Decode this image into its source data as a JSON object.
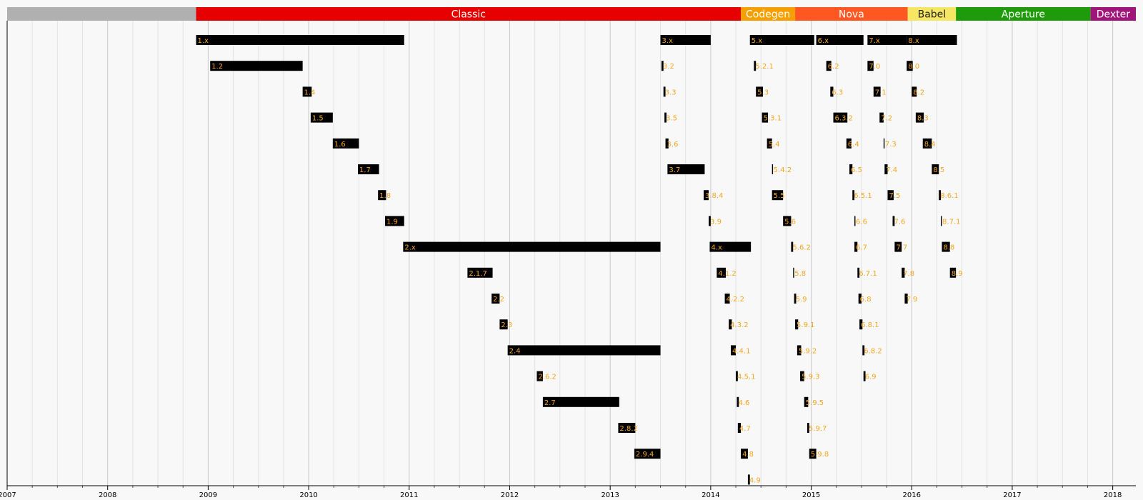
{
  "chart_data": {
    "type": "timeline",
    "xlim": [
      2007,
      2018.23
    ],
    "xticks": [
      2007,
      2008,
      2009,
      2010,
      2011,
      2012,
      2013,
      2014,
      2015,
      2016,
      2017,
      2018
    ],
    "xminor_per_tick": 4,
    "grid": true,
    "bar_color": "#000000",
    "label_color": "#f5a623",
    "eras": [
      {
        "name": null,
        "color": "#b0b0b0",
        "label_color": "#ffffff",
        "start": 2007.0,
        "end": 2008.88
      },
      {
        "name": "Classic",
        "color": "#e60000",
        "label_color": "#ffffff",
        "start": 2008.88,
        "end": 2014.3
      },
      {
        "name": "Codegen",
        "color": "#f5a000",
        "label_color": "#ffffff",
        "start": 2014.3,
        "end": 2014.84
      },
      {
        "name": "Nova",
        "color": "#ff5722",
        "label_color": "#ffffff",
        "start": 2014.84,
        "end": 2015.96
      },
      {
        "name": "Babel",
        "color": "#f5e663",
        "label_color": "#222222",
        "start": 2015.96,
        "end": 2016.44
      },
      {
        "name": "Aperture",
        "color": "#1e9a0a",
        "label_color": "#ffffff",
        "start": 2016.44,
        "end": 2017.78
      },
      {
        "name": "Dexter",
        "color": "#a0157a",
        "label_color": "#ffffff",
        "start": 2017.78,
        "end": 2018.23
      }
    ],
    "groups": [
      {
        "labels": [
          "1.x",
          "1.2",
          "1.4",
          "1.5",
          "1.6",
          "1.7",
          "1.8",
          "1.9",
          "2.x",
          "2.1.7",
          "2.2",
          "2.3",
          "2.4",
          "2.6.2",
          "2.7",
          "2.8.2",
          "2.9.4"
        ],
        "start": [
          2008.88,
          2009.02,
          2009.94,
          2010.02,
          2010.24,
          2010.49,
          2010.69,
          2010.76,
          2010.94,
          2011.58,
          2011.82,
          2011.9,
          2011.98,
          2012.27,
          2012.33,
          2013.08,
          2013.24
        ],
        "end": [
          2010.95,
          2009.94,
          2010.03,
          2010.24,
          2010.5,
          2010.7,
          2010.77,
          2010.95,
          2013.5,
          2011.83,
          2011.9,
          2011.98,
          2013.5,
          2012.33,
          2013.09,
          2013.25,
          2013.5
        ]
      },
      {
        "labels": [
          "3.x",
          "3.2",
          "3.3",
          "3.5",
          "3.6",
          "3.7",
          "3.8.4",
          "3.9",
          "4.x",
          "4.1.2",
          "4.2.2",
          "4.3.2",
          "4.4.1",
          "4.5.1",
          "4.6",
          "4.7",
          "4.8",
          "4.9"
        ],
        "start": [
          2013.5,
          2013.51,
          2013.53,
          2013.54,
          2013.55,
          2013.57,
          2013.93,
          2013.98,
          2013.99,
          2014.06,
          2014.14,
          2014.18,
          2014.2,
          2014.25,
          2014.26,
          2014.27,
          2014.3,
          2014.37
        ],
        "end": [
          2014.0,
          2013.53,
          2013.55,
          2013.56,
          2013.58,
          2013.94,
          2013.98,
          2014.0,
          2014.4,
          2014.15,
          2014.19,
          2014.21,
          2014.25,
          2014.27,
          2014.28,
          2014.3,
          2014.37,
          2014.39
        ]
      },
      {
        "labels": [
          "5.x",
          "5.2.1",
          "5.3",
          "5.3.1",
          "5.4",
          "5.4.2",
          "5.5",
          "5.6",
          "5.6.2",
          "5.8",
          "5.9",
          "5.9.1",
          "5.9.2",
          "5.9.3",
          "5.9.5",
          "5.9.7",
          "5.9.8"
        ],
        "start": [
          2014.39,
          2014.43,
          2014.45,
          2014.51,
          2014.56,
          2014.61,
          2014.61,
          2014.72,
          2014.8,
          2014.82,
          2014.83,
          2014.84,
          2014.86,
          2014.89,
          2014.93,
          2014.96,
          2014.98
        ],
        "end": [
          2015.03,
          2014.45,
          2014.52,
          2014.57,
          2014.61,
          2014.62,
          2014.72,
          2014.8,
          2014.82,
          2014.83,
          2014.85,
          2014.87,
          2014.9,
          2014.93,
          2014.97,
          2014.98,
          2015.05
        ]
      },
      {
        "labels": [
          "6.x",
          "6.2",
          "6.3",
          "6.3.2",
          "6.4",
          "6.5",
          "6.5.1",
          "6.6",
          "6.7",
          "6.7.1",
          "6.8",
          "6.8.1",
          "6.8.2",
          "6.9"
        ],
        "start": [
          2015.05,
          2015.15,
          2015.19,
          2015.22,
          2015.35,
          2015.38,
          2015.41,
          2015.43,
          2015.43,
          2015.46,
          2015.47,
          2015.48,
          2015.51,
          2015.52
        ],
        "end": [
          2015.52,
          2015.2,
          2015.22,
          2015.36,
          2015.4,
          2015.41,
          2015.43,
          2015.44,
          2015.46,
          2015.48,
          2015.5,
          2015.51,
          2015.53,
          2015.54
        ]
      },
      {
        "labels": [
          "7.x",
          "7.0",
          "7.1",
          "7.2",
          "7.3",
          "7.4",
          "7.5",
          "7.6",
          "7.7",
          "7.8",
          "7.9"
        ],
        "start": [
          2015.56,
          2015.56,
          2015.62,
          2015.68,
          2015.72,
          2015.73,
          2015.76,
          2015.81,
          2015.83,
          2015.9,
          2015.93
        ],
        "end": [
          2015.95,
          2015.62,
          2015.69,
          2015.72,
          2015.73,
          2015.76,
          2015.82,
          2015.83,
          2015.9,
          2015.93,
          2015.96
        ]
      },
      {
        "labels": [
          "8.x",
          "8.0",
          "8.2",
          "8.3",
          "8.4",
          "8.5",
          "8.6.1",
          "8.7.1",
          "8.8",
          "8.9"
        ],
        "start": [
          2015.95,
          2015.95,
          2016.0,
          2016.04,
          2016.11,
          2016.2,
          2016.27,
          2016.29,
          2016.3,
          2016.38
        ],
        "end": [
          2016.45,
          2016.01,
          2016.05,
          2016.12,
          2016.2,
          2016.27,
          2016.29,
          2016.3,
          2016.38,
          2016.44
        ]
      }
    ]
  }
}
